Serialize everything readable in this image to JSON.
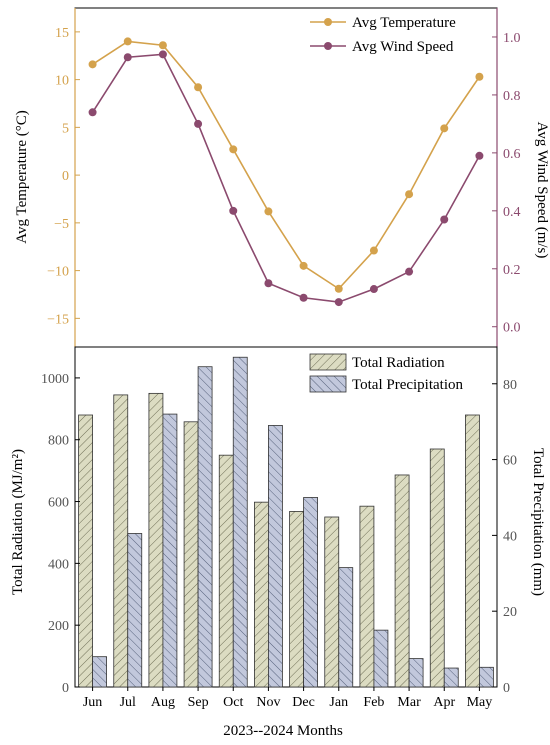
{
  "chart_data": [
    {
      "type": "line",
      "categories": [
        "Jun",
        "Jul",
        "Aug",
        "Sep",
        "Oct",
        "Nov",
        "Dec",
        "Jan",
        "Feb",
        "Mar",
        "Apr",
        "May"
      ],
      "series": [
        {
          "name": "Avg Temperature",
          "axis": "left",
          "color": "#D4A24C",
          "values": [
            11.6,
            14.0,
            13.6,
            9.2,
            2.7,
            -3.8,
            -9.5,
            -11.9,
            -7.9,
            -2.0,
            4.9,
            10.3
          ]
        },
        {
          "name": "Avg Wind Speed",
          "axis": "right",
          "color": "#8B4A6E",
          "values": [
            0.74,
            0.93,
            0.94,
            0.7,
            0.4,
            0.15,
            0.1,
            0.085,
            0.13,
            0.19,
            0.37,
            0.59
          ]
        }
      ],
      "ylabel": "Avg Temperature (°C)",
      "ylim": [
        -18,
        17.5
      ],
      "yticks": [
        15,
        10,
        5,
        0,
        -5,
        -10,
        -15
      ],
      "y2label": "Avg Wind Speed (m/s)",
      "y2lim": [
        -0.07,
        1.1
      ],
      "y2ticks": [
        1.0,
        0.8,
        0.6,
        0.4,
        0.2,
        0.0
      ],
      "legend": "top-right"
    },
    {
      "type": "bar",
      "categories": [
        "Jun",
        "Jul",
        "Aug",
        "Sep",
        "Oct",
        "Nov",
        "Dec",
        "Jan",
        "Feb",
        "Mar",
        "Apr",
        "May"
      ],
      "series": [
        {
          "name": "Total Radiation",
          "axis": "left",
          "color": "#DCDCC2",
          "values": [
            880,
            945,
            950,
            858,
            750,
            598,
            568,
            550,
            585,
            686,
            770,
            880
          ]
        },
        {
          "name": "Total Precipitation",
          "axis": "right",
          "color": "#C2C8DC",
          "values": [
            8,
            40.5,
            72,
            84.5,
            87,
            69,
            50,
            31.5,
            15,
            7.5,
            5,
            5.2
          ]
        }
      ],
      "ylabel": "Total Radiation (MJ/m²)",
      "ylim": [
        0,
        1100
      ],
      "yticks": [
        1000,
        800,
        600,
        400,
        200,
        0
      ],
      "y2label": "Total Precipitation (mm)",
      "y2lim": [
        0,
        89.7
      ],
      "y2ticks": [
        80,
        60,
        40,
        20,
        0
      ],
      "xlabel": "2023--2024 Months",
      "legend": "top-right"
    }
  ]
}
